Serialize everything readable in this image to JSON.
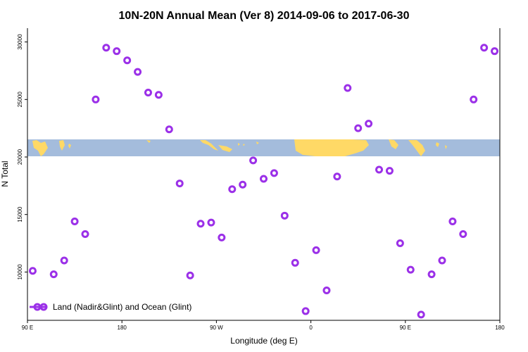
{
  "chart_data": {
    "type": "scatter",
    "title": "10N-20N Annual Mean (Ver 8)   2014-09-06 to 2017-06-30",
    "xlabel": "Longitude (deg E)",
    "ylabel": "N Total",
    "xlim": [
      90,
      450
    ],
    "ylim": [
      5800,
      31200
    ],
    "x_ticks": [
      {
        "value": 90,
        "label": "90 E"
      },
      {
        "value": 162,
        "label": "180"
      },
      {
        "value": 234,
        "label": "90 W"
      },
      {
        "value": 306,
        "label": "0"
      },
      {
        "value": 378,
        "label": "90 E"
      },
      {
        "value": 450,
        "label": "180"
      }
    ],
    "y_ticks": [
      {
        "value": 10000,
        "label": "10000"
      },
      {
        "value": 15000,
        "label": "15000"
      },
      {
        "value": 20000,
        "label": "20000"
      },
      {
        "value": 25000,
        "label": "25000"
      },
      {
        "value": 30000,
        "label": "30000"
      }
    ],
    "marker_color": "#9b30e8",
    "land_color": "#ffd966",
    "ocean_color": "#a4bcdc",
    "legend": {
      "label": "Land (Nadir&Glint) and Ocean (Glint)",
      "position": "bottom-left"
    },
    "series": [
      {
        "name": "Land (Nadir&Glint) and Ocean (Glint)",
        "x": [
          94,
          110,
          118,
          126,
          134,
          142,
          150,
          158,
          166,
          174,
          182,
          190,
          198,
          206,
          214,
          222,
          230,
          238,
          246,
          254,
          262,
          270,
          278,
          286,
          294,
          302,
          310,
          318,
          326,
          334,
          342,
          350,
          358,
          366,
          374,
          382,
          390,
          398,
          406,
          414,
          422,
          430,
          438,
          446
        ],
        "y": [
          10100,
          9800,
          11000,
          14400,
          13300,
          25000,
          29500,
          29200,
          28400,
          27400,
          25600,
          25400,
          22400,
          17700,
          9700,
          14200,
          14300,
          13000,
          17200,
          17600,
          19700,
          18100,
          18600,
          14900,
          10800,
          6600,
          11900,
          8400,
          18300,
          26000,
          22500,
          22900,
          18900,
          18800,
          12500,
          10200,
          6300,
          9800,
          11000,
          14400,
          13300,
          25000,
          29500,
          29200
        ]
      }
    ]
  }
}
